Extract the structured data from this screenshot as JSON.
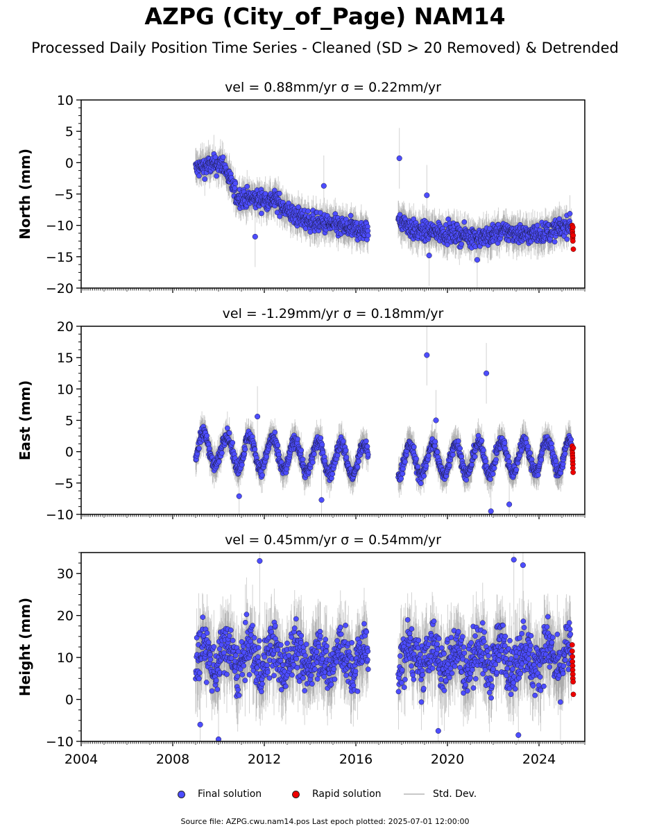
{
  "title": "AZPG (City_of_Page) NAM14",
  "subtitle": "Processed Daily Position Time Series - Cleaned (SD > 20 Removed) & Detrended",
  "legend": {
    "final": "Final solution",
    "rapid": "Rapid solution",
    "std": "Std. Dev."
  },
  "footer": "Source file: AZPG.cwu.nam14.pos  Last epoch plotted: 2025-07-01 12:00:00",
  "colors": {
    "final": "#4d4dff",
    "rapid": "#ee0000",
    "std": "#7f7f7f",
    "axis": "#000000"
  },
  "chart_data": [
    {
      "type": "scatter",
      "panel": "north",
      "title": "vel = 0.88mm/yr   σ = 0.22mm/yr",
      "ylabel": "North (mm)",
      "xlabel": "",
      "xlim": [
        2004,
        2026
      ],
      "ylim": [
        -20,
        10
      ],
      "yticks": [
        10,
        5,
        0,
        -5,
        -10,
        -15,
        -20
      ],
      "xticks": [
        2004,
        2008,
        2012,
        2016,
        2020,
        2024
      ],
      "show_xtick_labels": false,
      "series": [
        {
          "name": "Final solution",
          "role": "final",
          "trend_x": [
            2009.0,
            2009.5,
            2010.2,
            2010.8,
            2011.5,
            2012.5,
            2013.3,
            2014.2,
            2015.0,
            2016.5,
            2017.9,
            2018.6,
            2019.5,
            2020.5,
            2021.5,
            2022.5,
            2023.5,
            2024.5,
            2025.3
          ],
          "trend_y": [
            -1.0,
            -0.5,
            -0.2,
            -5.5,
            -5.8,
            -6.0,
            -8.5,
            -9.5,
            -10.0,
            -11.0,
            -9.0,
            -11.0,
            -11.0,
            -11.5,
            -12.0,
            -11.0,
            -11.5,
            -11.0,
            -10.0
          ],
          "noise": 1.3,
          "outliers": [
            [
              2017.9,
              0.7
            ],
            [
              2014.6,
              -3.7
            ],
            [
              2011.6,
              -11.8
            ],
            [
              2019.1,
              -5.2
            ],
            [
              2021.3,
              -15.5
            ],
            [
              2019.2,
              -14.8
            ]
          ]
        },
        {
          "name": "Rapid solution",
          "role": "rapid",
          "x": [
            2025.45,
            2025.45,
            2025.46,
            2025.46,
            2025.47,
            2025.47,
            2025.48,
            2025.48,
            2025.49,
            2025.5
          ],
          "y": [
            -10.0,
            -10.6,
            -11.0,
            -11.4,
            -11.8,
            -12.1,
            -12.5,
            -10.3,
            -11.6,
            -13.8
          ]
        }
      ]
    },
    {
      "type": "scatter",
      "panel": "east",
      "title": "vel = -1.29mm/yr   σ = 0.18mm/yr",
      "ylabel": "East (mm)",
      "xlabel": "",
      "xlim": [
        2004,
        2026
      ],
      "ylim": [
        -10,
        20
      ],
      "yticks": [
        20,
        15,
        10,
        5,
        0,
        -5,
        -10
      ],
      "xticks": [
        2004,
        2008,
        2012,
        2016,
        2020,
        2024
      ],
      "show_xtick_labels": false,
      "series": [
        {
          "name": "Final solution",
          "role": "final",
          "trend_x": [
            2009.0,
            2016.5,
            2017.9,
            2025.3
          ],
          "trend_y": [
            0.5,
            -1.5,
            -1.5,
            -0.5
          ],
          "seasonal_amp": 2.5,
          "noise": 0.9,
          "outliers": [
            [
              2019.1,
              15.4
            ],
            [
              2021.7,
              12.5
            ],
            [
              2019.5,
              5.0
            ],
            [
              2011.7,
              5.6
            ],
            [
              2014.5,
              -7.7
            ],
            [
              2021.9,
              -9.5
            ],
            [
              2022.7,
              -8.4
            ],
            [
              2010.9,
              -7.1
            ]
          ]
        },
        {
          "name": "Rapid solution",
          "role": "rapid",
          "x": [
            2025.45,
            2025.45,
            2025.46,
            2025.46,
            2025.47,
            2025.47,
            2025.48,
            2025.48,
            2025.49,
            2025.5
          ],
          "y": [
            0.9,
            0.3,
            -0.2,
            -0.6,
            -1.0,
            -1.5,
            -2.0,
            -2.6,
            -3.3,
            0.6
          ]
        }
      ]
    },
    {
      "type": "scatter",
      "panel": "height",
      "title": "vel = 0.45mm/yr   σ = 0.54mm/yr",
      "ylabel": "Height (mm)",
      "xlabel": "",
      "xlim": [
        2004,
        2026
      ],
      "ylim": [
        -10,
        35
      ],
      "yticks": [
        30,
        20,
        10,
        0,
        -10
      ],
      "xticks": [
        2004,
        2008,
        2012,
        2016,
        2020,
        2024
      ],
      "xtick_labels": [
        "2004",
        "2008",
        "2012",
        "2016",
        "2020",
        "2024"
      ],
      "show_xtick_labels": true,
      "series": [
        {
          "name": "Final solution",
          "role": "final",
          "trend_x": [
            2009.0,
            2016.5,
            2017.9,
            2025.3
          ],
          "trend_y": [
            10.0,
            9.5,
            10.0,
            10.0
          ],
          "seasonal_amp": 3.0,
          "noise": 5.2,
          "outliers": [
            [
              2011.8,
              33.0
            ],
            [
              2022.9,
              33.3
            ],
            [
              2023.3,
              32.0
            ],
            [
              2009.2,
              -6.0
            ],
            [
              2010.0,
              -9.5
            ],
            [
              2019.6,
              -7.5
            ],
            [
              2023.1,
              -8.5
            ]
          ]
        },
        {
          "name": "Rapid solution",
          "role": "rapid",
          "x": [
            2025.45,
            2025.45,
            2025.46,
            2025.46,
            2025.47,
            2025.47,
            2025.48,
            2025.48,
            2025.49,
            2025.5
          ],
          "y": [
            13.0,
            11.5,
            10.2,
            9.0,
            8.0,
            7.0,
            6.0,
            5.0,
            4.2,
            1.2
          ]
        }
      ]
    }
  ]
}
